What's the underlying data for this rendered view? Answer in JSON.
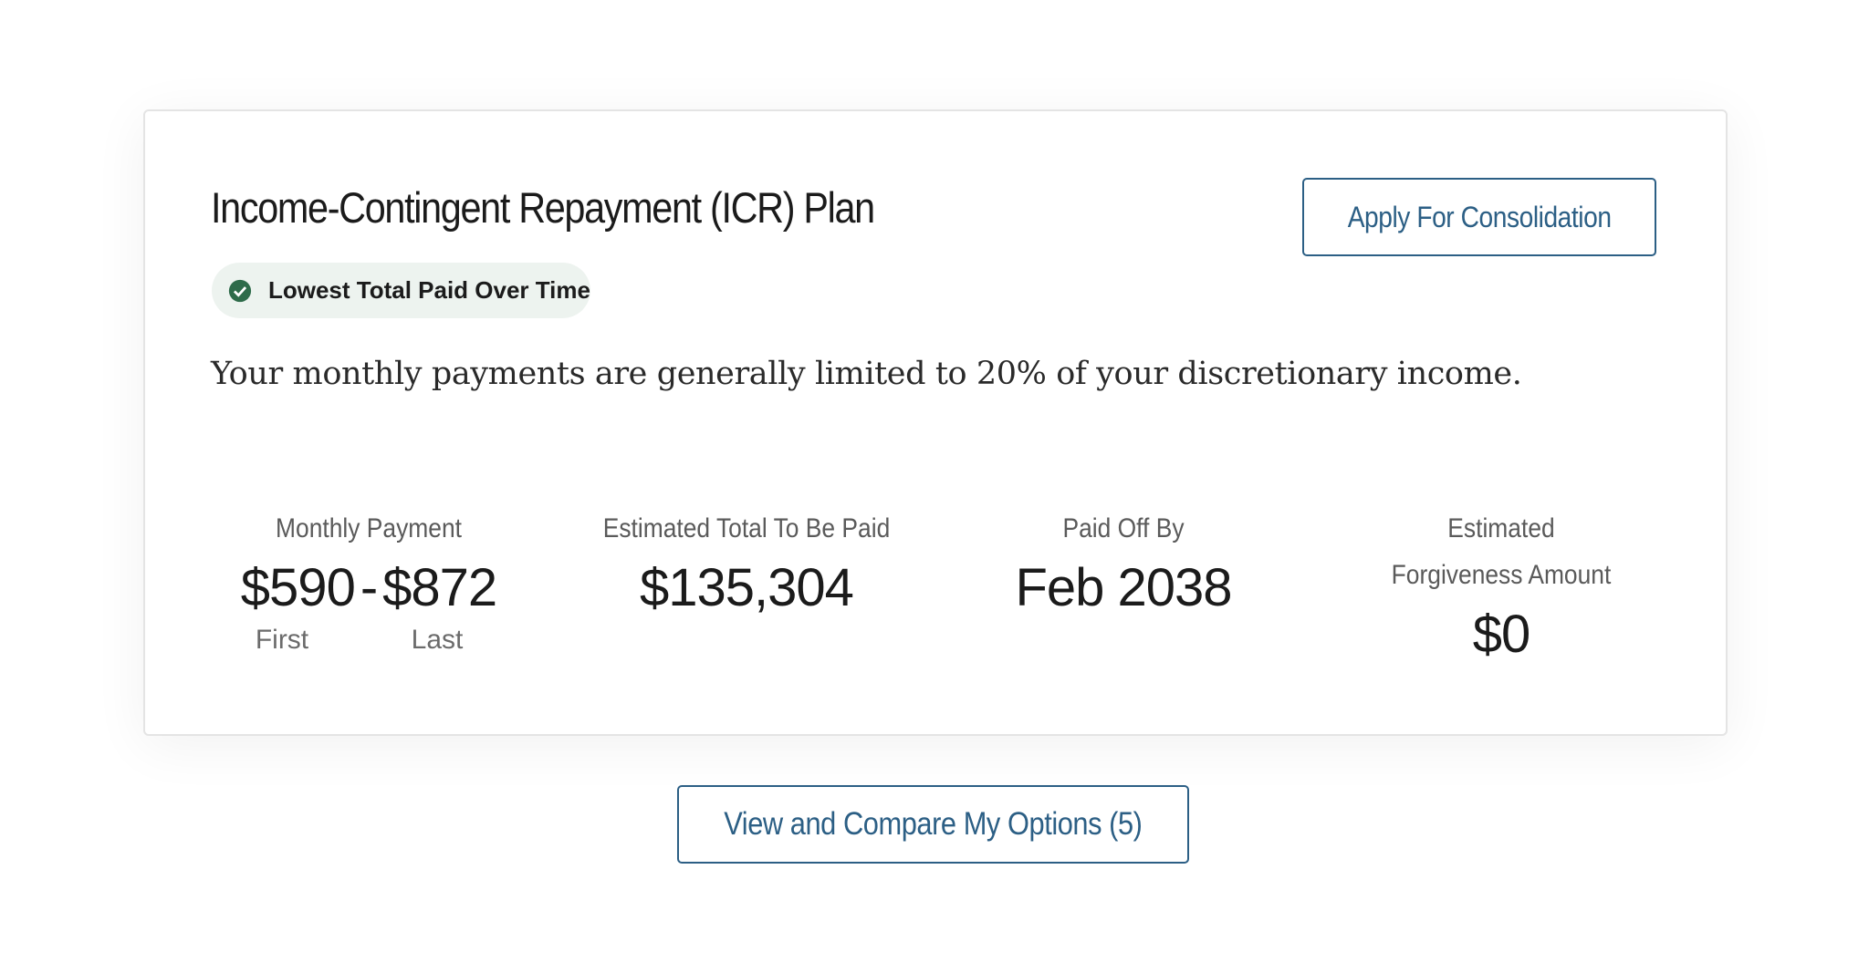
{
  "card": {
    "title": "Income-Contingent Repayment (ICR) Plan",
    "badge": "Lowest Total Paid Over Time",
    "button": "Apply For Consolidation",
    "description": "Your monthly payments are generally limited to 20% of your discretionary income.",
    "stats": [
      {
        "label": "Monthly Payment",
        "first": "$590",
        "separator": "-",
        "last": "$872",
        "first_label": "First",
        "last_label": "Last"
      },
      {
        "label": "Estimated Total To Be Paid",
        "value": "$135,304"
      },
      {
        "label": "Paid Off By",
        "value": "Feb 2038"
      },
      {
        "label": "Estimated Forgiveness Amount",
        "value": "$0"
      }
    ]
  },
  "footer_button": "View and Compare My Options (5)"
}
